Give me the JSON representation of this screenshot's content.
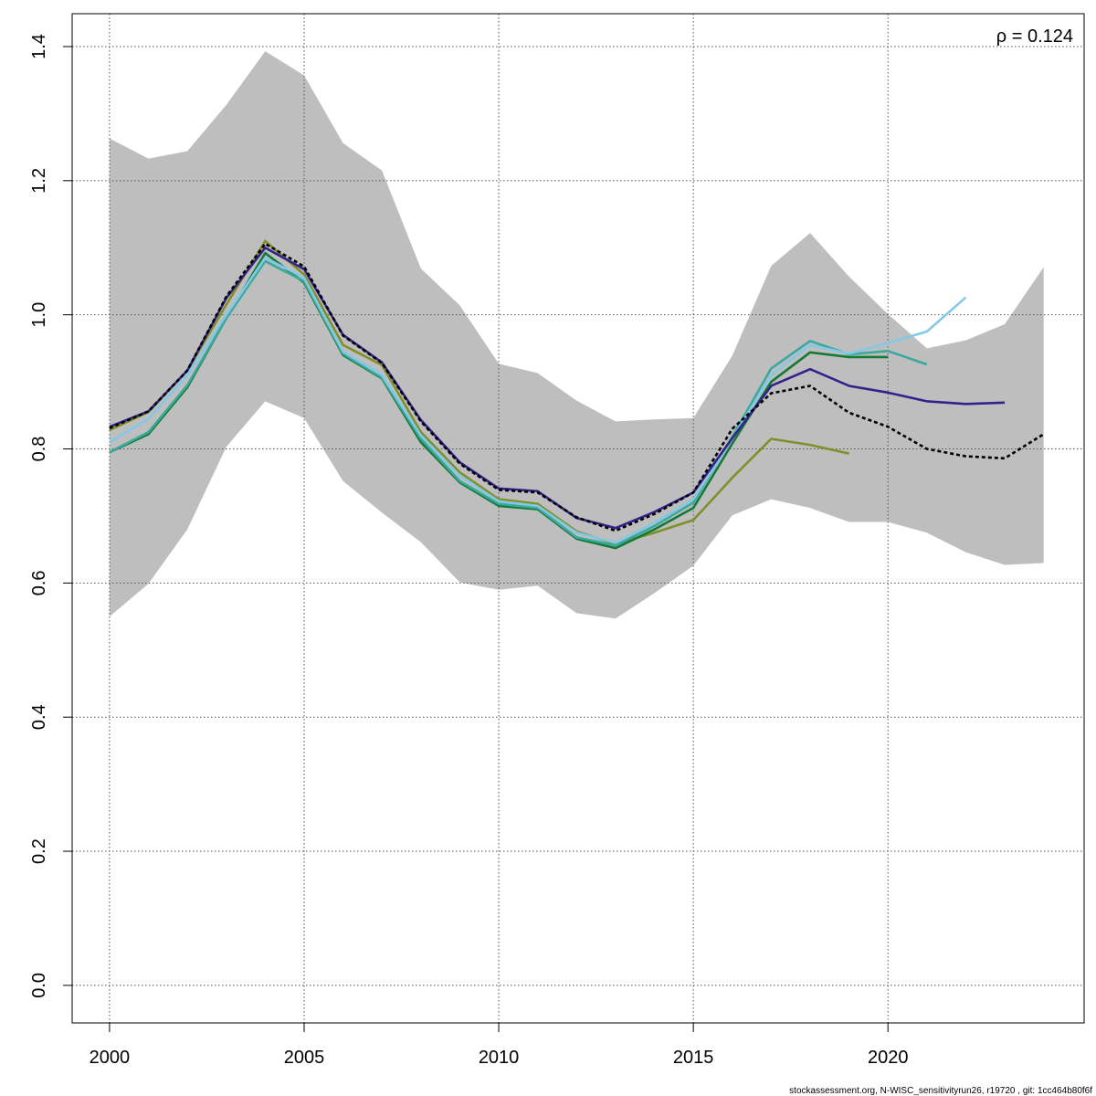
{
  "chart_data": {
    "type": "line",
    "annotation": "ρ = 0.124",
    "footer": "stockassessment.org, N-WISC_sensitivityrun26, r19720 , git: 1cc464b80f6f",
    "x": [
      2000,
      2001,
      2002,
      2003,
      2004,
      2005,
      2006,
      2007,
      2008,
      2009,
      2010,
      2011,
      2012,
      2013,
      2014,
      2015,
      2016,
      2017,
      2018,
      2019,
      2020,
      2021,
      2022,
      2023,
      2024
    ],
    "band": {
      "color": "#bebebe",
      "upper": [
        1.263,
        1.233,
        1.244,
        1.313,
        1.393,
        1.357,
        1.256,
        1.215,
        1.069,
        1.014,
        0.927,
        0.913,
        0.872,
        0.841,
        0.844,
        0.846,
        0.939,
        1.073,
        1.122,
        1.057,
        1.001,
        0.95,
        0.962,
        0.986,
        1.071
      ],
      "lower": [
        0.55,
        0.599,
        0.68,
        0.803,
        0.871,
        0.846,
        0.752,
        0.705,
        0.661,
        0.601,
        0.59,
        0.596,
        0.555,
        0.547,
        0.585,
        0.626,
        0.701,
        0.725,
        0.712,
        0.691,
        0.691,
        0.675,
        0.646,
        0.627,
        0.63
      ]
    },
    "series": [
      {
        "color": "#808f2a",
        "values": [
          0.828,
          0.855,
          0.917,
          1.015,
          1.11,
          1.06,
          0.955,
          0.925,
          0.825,
          0.765,
          0.725,
          0.718,
          0.677,
          0.658,
          0.675,
          0.694,
          0.757,
          0.815,
          0.806,
          0.793,
          null,
          null,
          null,
          null,
          null
        ]
      },
      {
        "color": "#137a36",
        "values": [
          0.795,
          0.822,
          0.892,
          0.995,
          1.092,
          1.048,
          0.94,
          0.905,
          0.81,
          0.75,
          0.715,
          0.71,
          0.666,
          0.652,
          0.68,
          0.712,
          0.808,
          0.9,
          0.944,
          0.937,
          0.937,
          null,
          null,
          null,
          null
        ]
      },
      {
        "color": "#3aa99c",
        "values": [
          0.795,
          0.825,
          0.895,
          0.995,
          1.08,
          1.05,
          0.942,
          0.906,
          0.815,
          0.752,
          0.718,
          0.712,
          0.668,
          0.656,
          0.685,
          0.72,
          0.818,
          0.92,
          0.961,
          0.941,
          0.946,
          0.926,
          null,
          null,
          null
        ]
      },
      {
        "color": "#84c8e6",
        "values": [
          0.81,
          0.845,
          0.91,
          1.0,
          1.085,
          1.055,
          0.945,
          0.91,
          0.82,
          0.76,
          0.722,
          0.715,
          0.675,
          0.66,
          0.69,
          0.725,
          0.815,
          0.91,
          0.955,
          0.942,
          0.958,
          0.975,
          1.026,
          null,
          null
        ]
      },
      {
        "color": "#33228a",
        "values": [
          0.833,
          0.856,
          0.917,
          1.025,
          1.1,
          1.068,
          0.97,
          0.929,
          0.843,
          0.78,
          0.741,
          0.737,
          0.697,
          0.682,
          0.706,
          0.735,
          0.816,
          0.894,
          0.919,
          0.894,
          0.884,
          0.871,
          0.867,
          0.869,
          null
        ]
      },
      {
        "color": "#000000",
        "dashed": true,
        "values": [
          0.831,
          0.856,
          0.917,
          1.027,
          1.106,
          1.072,
          0.969,
          0.928,
          0.841,
          0.778,
          0.739,
          0.735,
          0.698,
          0.678,
          0.703,
          0.735,
          0.83,
          0.883,
          0.894,
          0.854,
          0.833,
          0.8,
          0.789,
          0.786,
          0.822
        ]
      }
    ],
    "xlim": [
      1999.04,
      2025.04
    ],
    "ylim": [
      -0.056,
      1.449
    ],
    "xticks": [
      2000,
      2005,
      2010,
      2015,
      2020
    ],
    "yticks": [
      {
        "value": 0,
        "label": "0.0"
      },
      0.2,
      0.4,
      0.6,
      0.8,
      {
        "value": 1,
        "label": "1.0"
      },
      1.2,
      1.4
    ],
    "grid": true
  }
}
